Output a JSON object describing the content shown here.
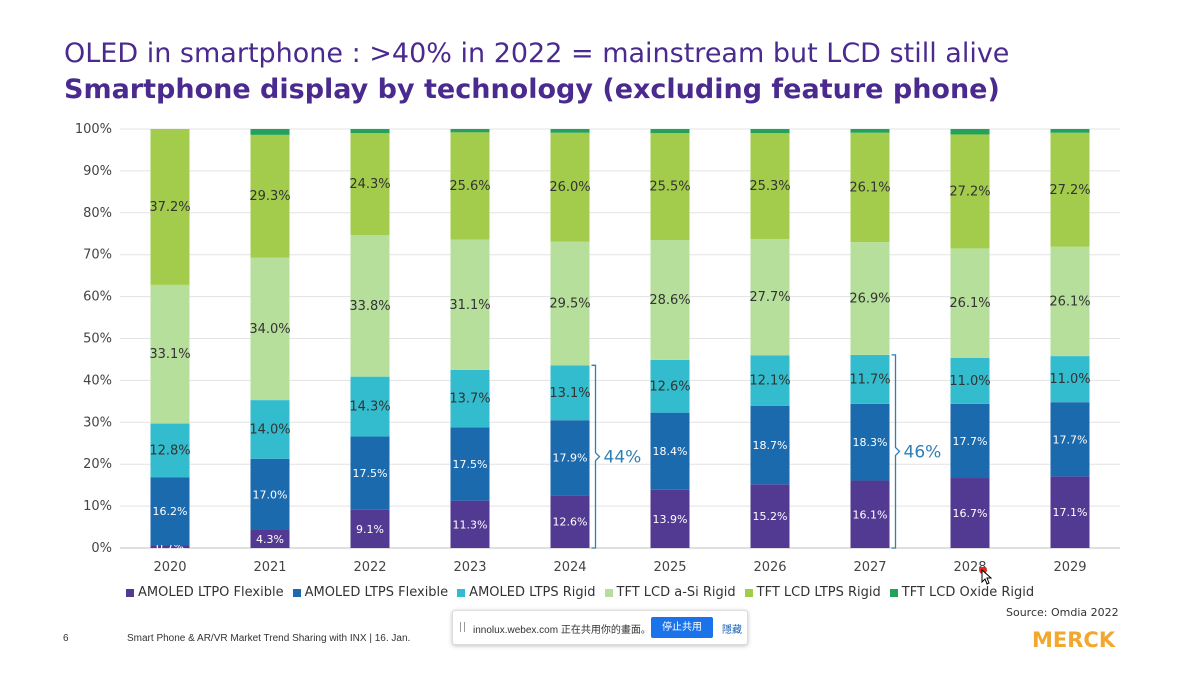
{
  "slide": {
    "title_line1": "OLED in smartphone : >40% in 2022 = mainstream but LCD still alive",
    "title_line2": "Smartphone display by technology (excluding feature phone)",
    "source": "Source: Omdia 2022",
    "page_number": "6",
    "footer": "Smart Phone & AR/VR Market Trend Sharing with INX | 16. Jan.",
    "logo": "MERCK"
  },
  "share_bar": {
    "text": "innolux.webex.com 正在共用你的畫面。",
    "stop_label": "停止共用",
    "hide_label": "隱藏"
  },
  "chart_data": {
    "type": "bar",
    "stacked": true,
    "categories": [
      "2020",
      "2021",
      "2022",
      "2023",
      "2024",
      "2025",
      "2026",
      "2027",
      "2028",
      "2029"
    ],
    "yticks": [
      "0%",
      "10%",
      "20%",
      "30%",
      "40%",
      "50%",
      "60%",
      "70%",
      "80%",
      "90%",
      "100%"
    ],
    "ylim": [
      0,
      100
    ],
    "grid": true,
    "legend_position": "bottom",
    "series": [
      {
        "name": "AMOLED LTPO Flexible",
        "color": "#523a93",
        "values": [
          0.7,
          4.3,
          9.1,
          11.3,
          12.6,
          13.9,
          15.2,
          16.1,
          16.7,
          17.1
        ],
        "labels": [
          "0.7%",
          "4.3%",
          "9.1%",
          "11.3%",
          "12.6%",
          "13.9%",
          "15.2%",
          "16.1%",
          "16.7%",
          "17.1%"
        ]
      },
      {
        "name": "AMOLED LTPS Flexible",
        "color": "#1b6aad",
        "values": [
          16.2,
          17.0,
          17.5,
          17.5,
          17.9,
          18.4,
          18.7,
          18.3,
          17.7,
          17.7
        ],
        "labels": [
          "16.2%",
          "17.0%",
          "17.5%",
          "17.5%",
          "17.9%",
          "18.4%",
          "18.7%",
          "18.3%",
          "17.7%",
          "17.7%"
        ]
      },
      {
        "name": "AMOLED LTPS Rigid",
        "color": "#33bccd",
        "values": [
          12.8,
          14.0,
          14.3,
          13.7,
          13.1,
          12.6,
          12.1,
          11.7,
          11.0,
          11.0
        ],
        "labels": [
          "12.8%",
          "14.0%",
          "14.3%",
          "13.7%",
          "13.1%",
          "12.6%",
          "12.1%",
          "11.7%",
          "11.0%",
          "11.0%"
        ]
      },
      {
        "name": "TFT LCD a-Si Rigid",
        "color": "#b6df9b",
        "values": [
          33.1,
          34.0,
          33.8,
          31.1,
          29.5,
          28.6,
          27.7,
          26.9,
          26.1,
          26.1
        ],
        "labels": [
          "33.1%",
          "34.0%",
          "33.8%",
          "31.1%",
          "29.5%",
          "28.6%",
          "27.7%",
          "26.9%",
          "26.1%",
          "26.1%"
        ]
      },
      {
        "name": "TFT LCD LTPS Rigid",
        "color": "#a3cc4c",
        "values": [
          37.2,
          29.3,
          24.3,
          25.6,
          26.0,
          25.5,
          25.3,
          26.1,
          27.2,
          27.2
        ],
        "labels": [
          "37.2%",
          "29.3%",
          "24.3%",
          "25.6%",
          "26.0%",
          "25.5%",
          "25.3%",
          "26.1%",
          "27.2%",
          "27.2%"
        ]
      },
      {
        "name": "TFT LCD Oxide Rigid",
        "color": "#24a25a",
        "values": [
          0.0,
          1.4,
          1.0,
          0.8,
          0.9,
          1.0,
          1.0,
          0.9,
          1.3,
          0.9
        ]
      }
    ],
    "annotations": [
      {
        "category": "2024",
        "upto": 43.6,
        "text": "44%"
      },
      {
        "category": "2027",
        "upto": 46.1,
        "text": "46%"
      }
    ]
  }
}
